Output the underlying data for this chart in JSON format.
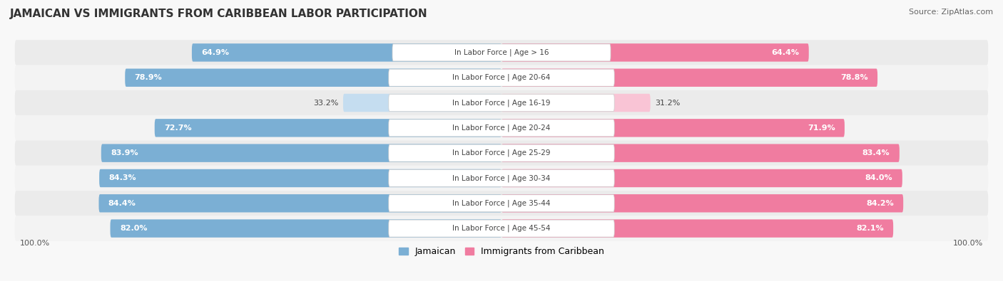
{
  "title": "JAMAICAN VS IMMIGRANTS FROM CARIBBEAN LABOR PARTICIPATION",
  "source": "Source: ZipAtlas.com",
  "categories": [
    "In Labor Force | Age > 16",
    "In Labor Force | Age 20-64",
    "In Labor Force | Age 16-19",
    "In Labor Force | Age 20-24",
    "In Labor Force | Age 25-29",
    "In Labor Force | Age 30-34",
    "In Labor Force | Age 35-44",
    "In Labor Force | Age 45-54"
  ],
  "jamaican_values": [
    64.9,
    78.9,
    33.2,
    72.7,
    83.9,
    84.3,
    84.4,
    82.0
  ],
  "caribbean_values": [
    64.4,
    78.8,
    31.2,
    71.9,
    83.4,
    84.0,
    84.2,
    82.1
  ],
  "jamaican_color": "#7bafd4",
  "caribbean_color": "#f07ca0",
  "jamaican_color_light": "#c5ddf0",
  "caribbean_color_light": "#f9c4d5",
  "row_colors": [
    "#ebebeb",
    "#f3f3f3"
  ],
  "title_fontsize": 11,
  "source_fontsize": 8,
  "bar_label_fontsize": 8,
  "cat_label_fontsize": 7.5,
  "legend_fontsize": 9,
  "max_value": 100.0
}
